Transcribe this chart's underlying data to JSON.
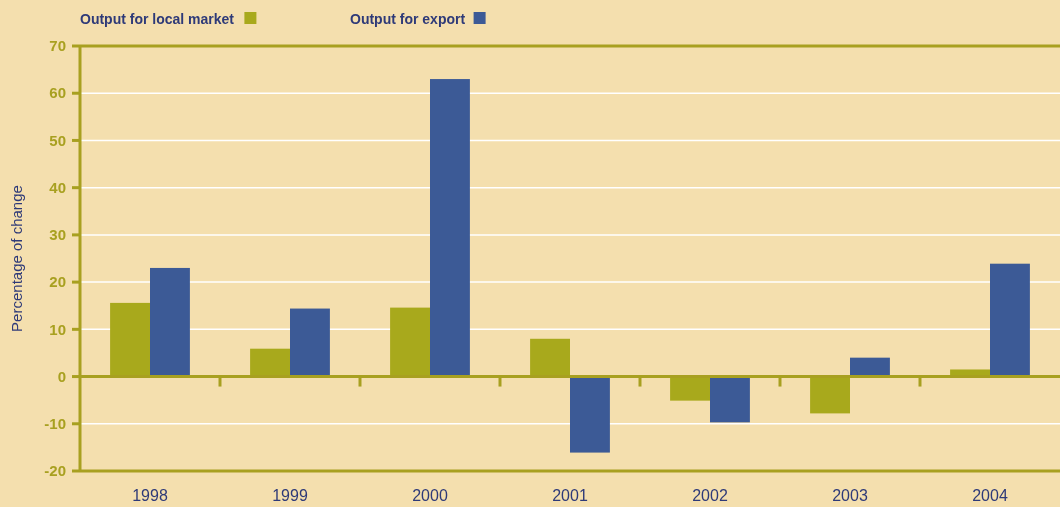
{
  "chart_data": {
    "type": "bar",
    "ylabel": "Percentage of change",
    "categories": [
      "1998",
      "1999",
      "2000",
      "2001",
      "2002",
      "2003",
      "2004"
    ],
    "series": [
      {
        "name": "Output for local market",
        "color": "#a8a91c",
        "values": [
          15.6,
          5.9,
          14.6,
          8.0,
          -5.1,
          -7.8,
          1.5
        ]
      },
      {
        "name": "Output for export",
        "color": "#3c5a96",
        "values": [
          23.0,
          14.4,
          63.0,
          -16.1,
          -9.7,
          4.0,
          23.9
        ]
      }
    ],
    "ylim": [
      -20,
      70
    ],
    "yticks": [
      -20,
      -10,
      0,
      10,
      20,
      30,
      40,
      50,
      60,
      70
    ],
    "grid": "y",
    "legend": "top left",
    "ref_lines": [
      {
        "axis": "y",
        "value": 0,
        "color": "#a8a020"
      }
    ]
  }
}
